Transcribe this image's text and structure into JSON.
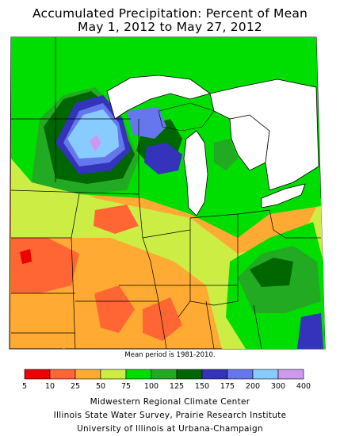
{
  "title_line1": "Accumulated Precipitation: Percent of Mean",
  "title_line2": "May 1, 2012 to May 27, 2012",
  "mean_period_note": "Mean period is 1981-2010.",
  "legend": {
    "tick_labels": [
      "5",
      "10",
      "25",
      "50",
      "75",
      "100",
      "125",
      "150",
      "175",
      "200",
      "300",
      "400"
    ],
    "colors": [
      "#ee0000",
      "#ff6633",
      "#ffaa33",
      "#ccee44",
      "#00dd00",
      "#22aa22",
      "#006600",
      "#3333bb",
      "#6677ee",
      "#88ccff",
      "#cc99ee"
    ]
  },
  "credits": {
    "line1": "Midwestern Regional Climate Center",
    "line2": "Illinois State Water Survey, Prairie Research Institute",
    "line3": "University of Illinois at Urbana-Champaign"
  }
}
